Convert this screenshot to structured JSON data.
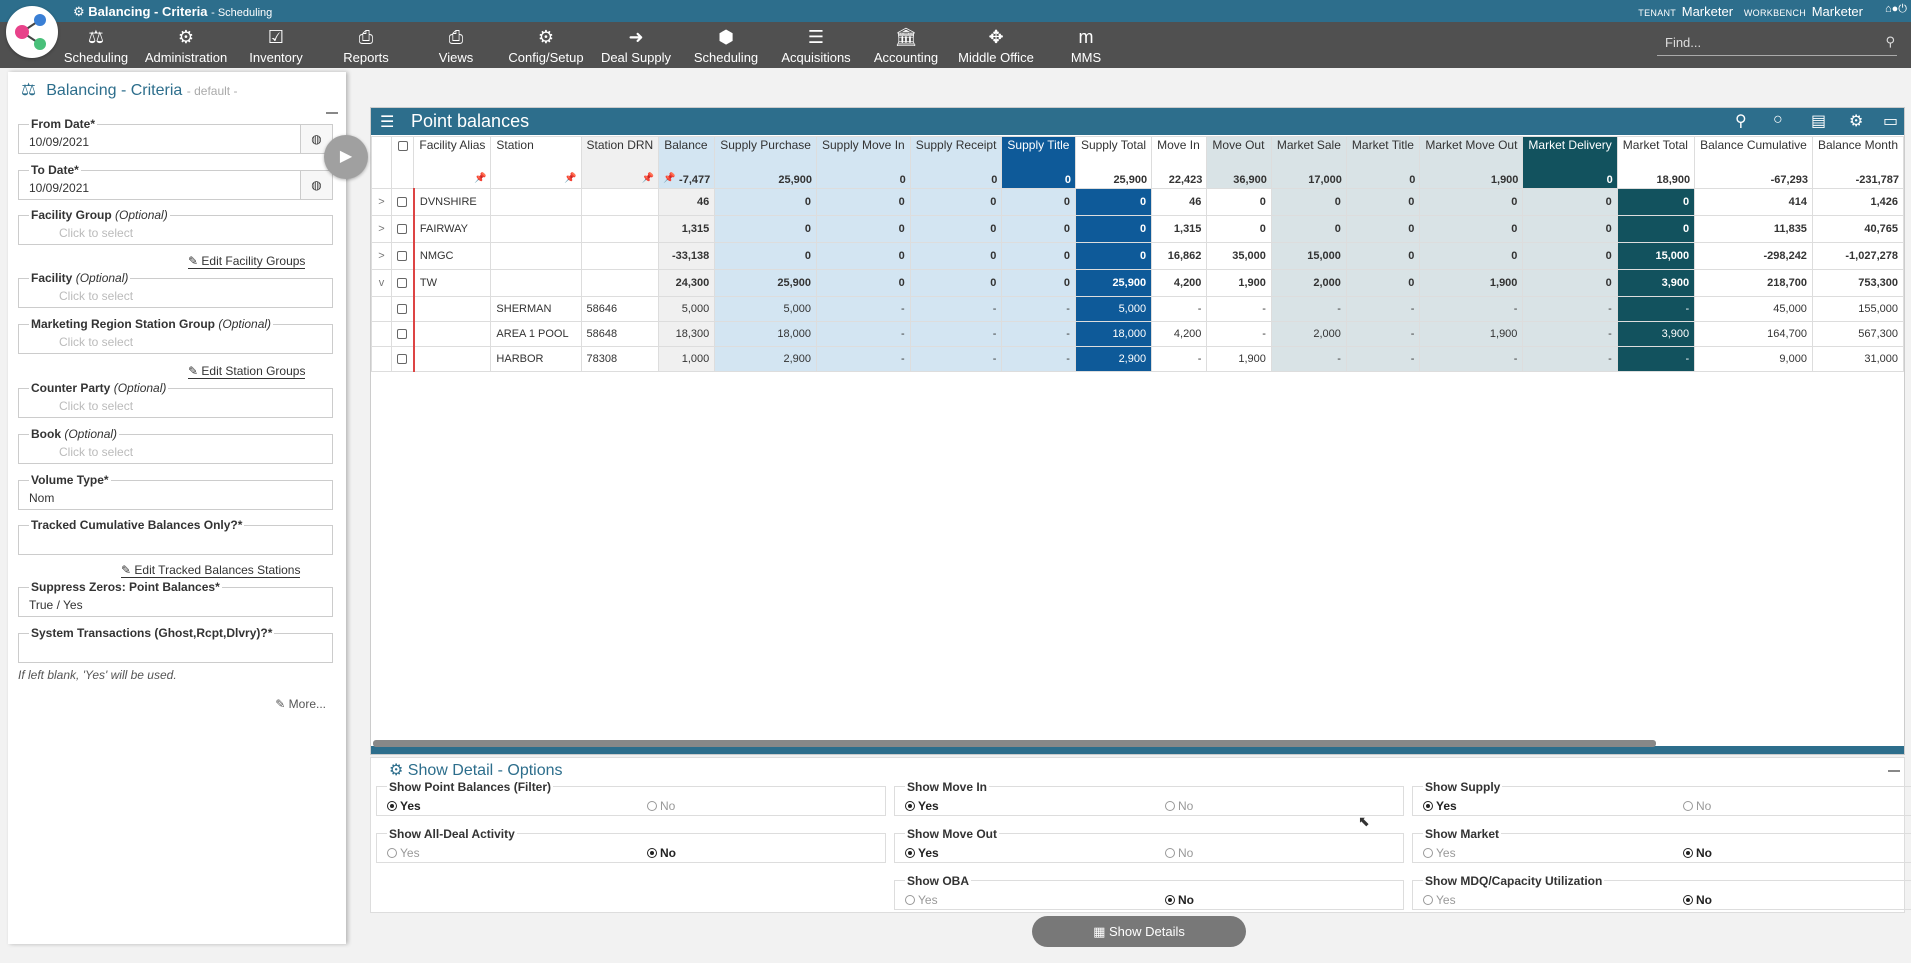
{
  "titlebar": {
    "title": "Balancing - Criteria",
    "sub": "- Scheduling",
    "tenant_label": "TENANT",
    "tenant": "Marketer",
    "workbench_label": "WORKBENCH",
    "workbench": "Marketer"
  },
  "menu": [
    {
      "label": "Scheduling",
      "icon": "scales-icon"
    },
    {
      "label": "Administration",
      "icon": "gears-icon"
    },
    {
      "label": "Inventory",
      "icon": "checkbox-icon"
    },
    {
      "label": "Reports",
      "icon": "printer-icon"
    },
    {
      "label": "Views",
      "icon": "printer-icon"
    },
    {
      "label": "Config/Setup",
      "icon": "gear-icon"
    },
    {
      "label": "Deal Supply",
      "icon": "sign-in-icon"
    },
    {
      "label": "Scheduling",
      "icon": "cube-icon"
    },
    {
      "label": "Acquisitions",
      "icon": "bars-icon"
    },
    {
      "label": "Accounting",
      "icon": "bank-icon"
    },
    {
      "label": "Middle Office",
      "icon": "crosshair-icon"
    },
    {
      "label": "MMS",
      "icon": "mms-icon"
    }
  ],
  "find_placeholder": "Find...",
  "criteria": {
    "title": "Balancing - Criteria",
    "subtitle": "- default -",
    "from_date_label": "From Date",
    "from_date": "10/09/2021",
    "to_date_label": "To Date",
    "to_date": "10/09/2021",
    "facility_group_label": "Facility Group",
    "facility_label": "Facility",
    "mrsg_label": "Marketing Region Station Group",
    "counter_party_label": "Counter Party",
    "book_label": "Book",
    "optional": "(Optional)",
    "click_to_select": "Click to select",
    "edit_facility_groups": "Edit Facility Groups",
    "edit_station_groups": "Edit Station Groups",
    "volume_type_label": "Volume Type",
    "volume_type": "Nom",
    "tracked_label": "Tracked Cumulative Balances Only?",
    "edit_tracked": "Edit Tracked Balances Stations",
    "suppress_label": "Suppress Zeros: Point Balances",
    "suppress": "True / Yes",
    "system_label": "System Transactions (Ghost,Rcpt,Dlvry)?",
    "note": "If left blank, 'Yes' will be used.",
    "more": "More..."
  },
  "grid": {
    "title": "Point balances",
    "columns": [
      {
        "label": "Facility Alias",
        "total": ""
      },
      {
        "label": "Station",
        "total": ""
      },
      {
        "label": "Station DRN",
        "total": ""
      },
      {
        "label": "Balance",
        "total": "-7,477"
      },
      {
        "label": "Supply Purchase",
        "total": "25,900"
      },
      {
        "label": "Supply Move In",
        "total": "0"
      },
      {
        "label": "Supply Receipt",
        "total": "0"
      },
      {
        "label": "Supply Title",
        "total": "0"
      },
      {
        "label": "Supply Total",
        "total": "25,900"
      },
      {
        "label": "Move In",
        "total": "22,423"
      },
      {
        "label": "Move Out",
        "total": "36,900"
      },
      {
        "label": "Market Sale",
        "total": "17,000"
      },
      {
        "label": "Market Title",
        "total": "0"
      },
      {
        "label": "Market Move Out",
        "total": "1,900"
      },
      {
        "label": "Market Delivery",
        "total": "0"
      },
      {
        "label": "Market Total",
        "total": "18,900"
      },
      {
        "label": "Balance Cumulative",
        "total": "-67,293"
      },
      {
        "label": "Balance Month",
        "total": "-231,787"
      }
    ],
    "rows": [
      {
        "expander": ">",
        "alias": "DVNSHIRE",
        "station": "",
        "drn": "",
        "v": [
          "46",
          "0",
          "0",
          "0",
          "0",
          "0",
          "46",
          "0",
          "0",
          "0",
          "0",
          "0",
          "0",
          "414",
          "1,426"
        ]
      },
      {
        "expander": ">",
        "alias": "FAIRWAY",
        "station": "",
        "drn": "",
        "v": [
          "1,315",
          "0",
          "0",
          "0",
          "0",
          "0",
          "1,315",
          "0",
          "0",
          "0",
          "0",
          "0",
          "0",
          "11,835",
          "40,765"
        ]
      },
      {
        "expander": ">",
        "alias": "NMGC",
        "station": "",
        "drn": "",
        "v": [
          "-33,138",
          "0",
          "0",
          "0",
          "0",
          "0",
          "16,862",
          "35,000",
          "15,000",
          "0",
          "0",
          "0",
          "15,000",
          "-298,242",
          "-1,027,278"
        ]
      },
      {
        "expander": "v",
        "alias": "TW",
        "station": "",
        "drn": "",
        "v": [
          "24,300",
          "25,900",
          "0",
          "0",
          "0",
          "25,900",
          "4,200",
          "1,900",
          "2,000",
          "0",
          "1,900",
          "0",
          "3,900",
          "218,700",
          "753,300"
        ]
      },
      {
        "expander": "",
        "alias": "",
        "station": "SHERMAN",
        "drn": "58646",
        "sub": true,
        "v": [
          "5,000",
          "5,000",
          "-",
          "-",
          "-",
          "5,000",
          "-",
          "-",
          "-",
          "-",
          "-",
          "-",
          "-",
          "45,000",
          "155,000"
        ]
      },
      {
        "expander": "",
        "alias": "",
        "station": "AREA 1 POOL",
        "drn": "58648",
        "sub": true,
        "v": [
          "18,300",
          "18,000",
          "-",
          "-",
          "-",
          "18,000",
          "4,200",
          "-",
          "2,000",
          "-",
          "1,900",
          "-",
          "3,900",
          "164,700",
          "567,300"
        ]
      },
      {
        "expander": "",
        "alias": "",
        "station": "HARBOR",
        "drn": "78308",
        "sub": true,
        "v": [
          "1,000",
          "2,900",
          "-",
          "-",
          "-",
          "2,900",
          "-",
          "1,900",
          "-",
          "-",
          "-",
          "-",
          "-",
          "9,000",
          "31,000"
        ]
      }
    ]
  },
  "options": {
    "title": "Show Detail - Options",
    "yes": "Yes",
    "no": "No",
    "items": [
      {
        "label": "Show Point Balances (Filter)",
        "selected": "yes"
      },
      {
        "label": "Show Move In",
        "selected": "yes"
      },
      {
        "label": "Show Supply",
        "selected": "yes"
      },
      {
        "label": "Show All-Deal Activity",
        "selected": "no"
      },
      {
        "label": "Show Move Out",
        "selected": "yes"
      },
      {
        "label": "Show Market",
        "selected": "no"
      },
      {
        "label": "Show OBA",
        "selected": "no"
      },
      {
        "label": "Show MDQ/Capacity Utilization",
        "selected": "no"
      }
    ]
  },
  "show_details": "Show Details"
}
